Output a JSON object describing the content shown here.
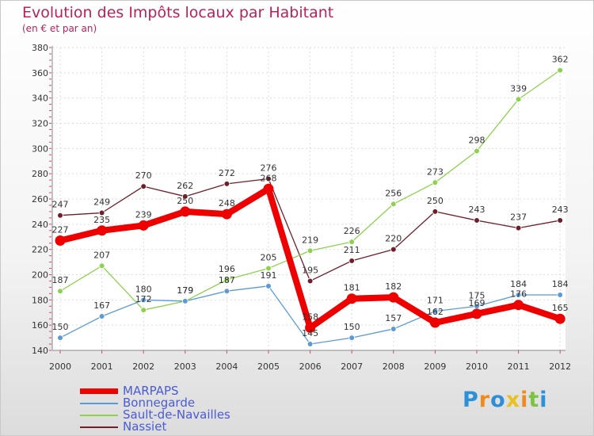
{
  "chart_data": {
    "type": "line",
    "title": "Evolution des Impôts locaux par Habitant",
    "subtitle": "(en € et par an)",
    "xlabel": "",
    "ylabel": "",
    "categories": [
      "2000",
      "2001",
      "2002",
      "2003",
      "2004",
      "2005",
      "2006",
      "2007",
      "2008",
      "2009",
      "2010",
      "2011",
      "2012"
    ],
    "ylim": [
      140,
      380
    ],
    "yticks": [
      140,
      160,
      180,
      200,
      220,
      240,
      260,
      280,
      300,
      320,
      340,
      360,
      380
    ],
    "grid": true,
    "legend_position": "bottom-left",
    "series": [
      {
        "name": "MARPAPS",
        "color": "#ee0000",
        "values": [
          227,
          235,
          239,
          250,
          248,
          268,
          158,
          181,
          182,
          162,
          169,
          176,
          165
        ]
      },
      {
        "name": "Bonnegarde",
        "color": "#5b9bd5",
        "values": [
          150,
          167,
          180,
          179,
          187,
          191,
          145,
          150,
          157,
          171,
          175,
          184,
          184
        ]
      },
      {
        "name": "Sault-de-Navailles",
        "color": "#8fd14f",
        "values": [
          187,
          207,
          172,
          179,
          196,
          205,
          219,
          226,
          256,
          273,
          298,
          339,
          362
        ]
      },
      {
        "name": "Nassiet",
        "color": "#6e1f2a",
        "values": [
          247,
          249,
          270,
          262,
          272,
          276,
          195,
          211,
          220,
          250,
          243,
          237,
          243
        ]
      }
    ]
  },
  "brand": {
    "letters": [
      "P",
      "r",
      "o",
      "x",
      "i",
      "t",
      "i"
    ],
    "colors": [
      "#2e8fd9",
      "#f08a1c",
      "#2e8fd9",
      "#e8c21a",
      "#f08a1c",
      "#7cc243",
      "#2e8fd9"
    ]
  }
}
